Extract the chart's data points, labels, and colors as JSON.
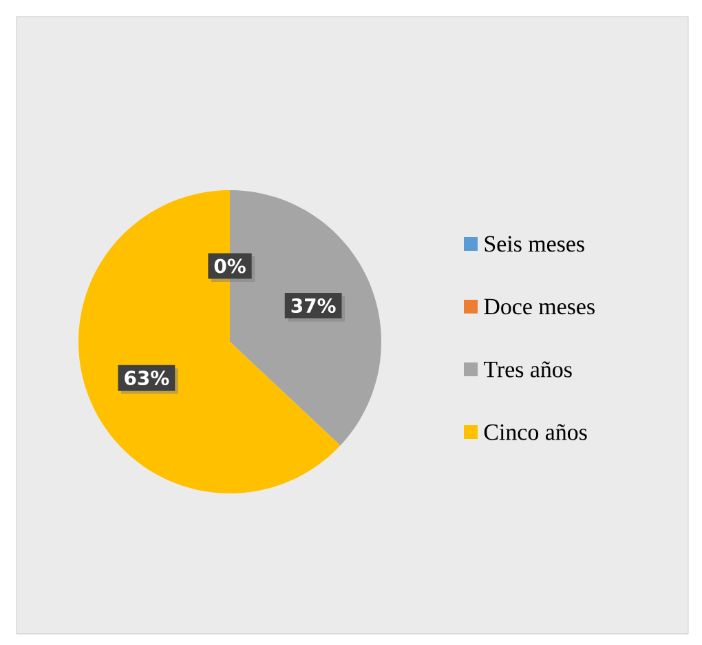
{
  "chart_data": {
    "type": "pie",
    "categories": [
      "Seis meses",
      "Doce meses",
      "Tres años",
      "Cinco años"
    ],
    "values": [
      0,
      0,
      37,
      63
    ],
    "colors": [
      "#5b9bd5",
      "#ed7d31",
      "#a5a5a5",
      "#ffc000"
    ],
    "value_labels": [
      "0%",
      null,
      "37%",
      "63%"
    ],
    "legend": "right"
  }
}
